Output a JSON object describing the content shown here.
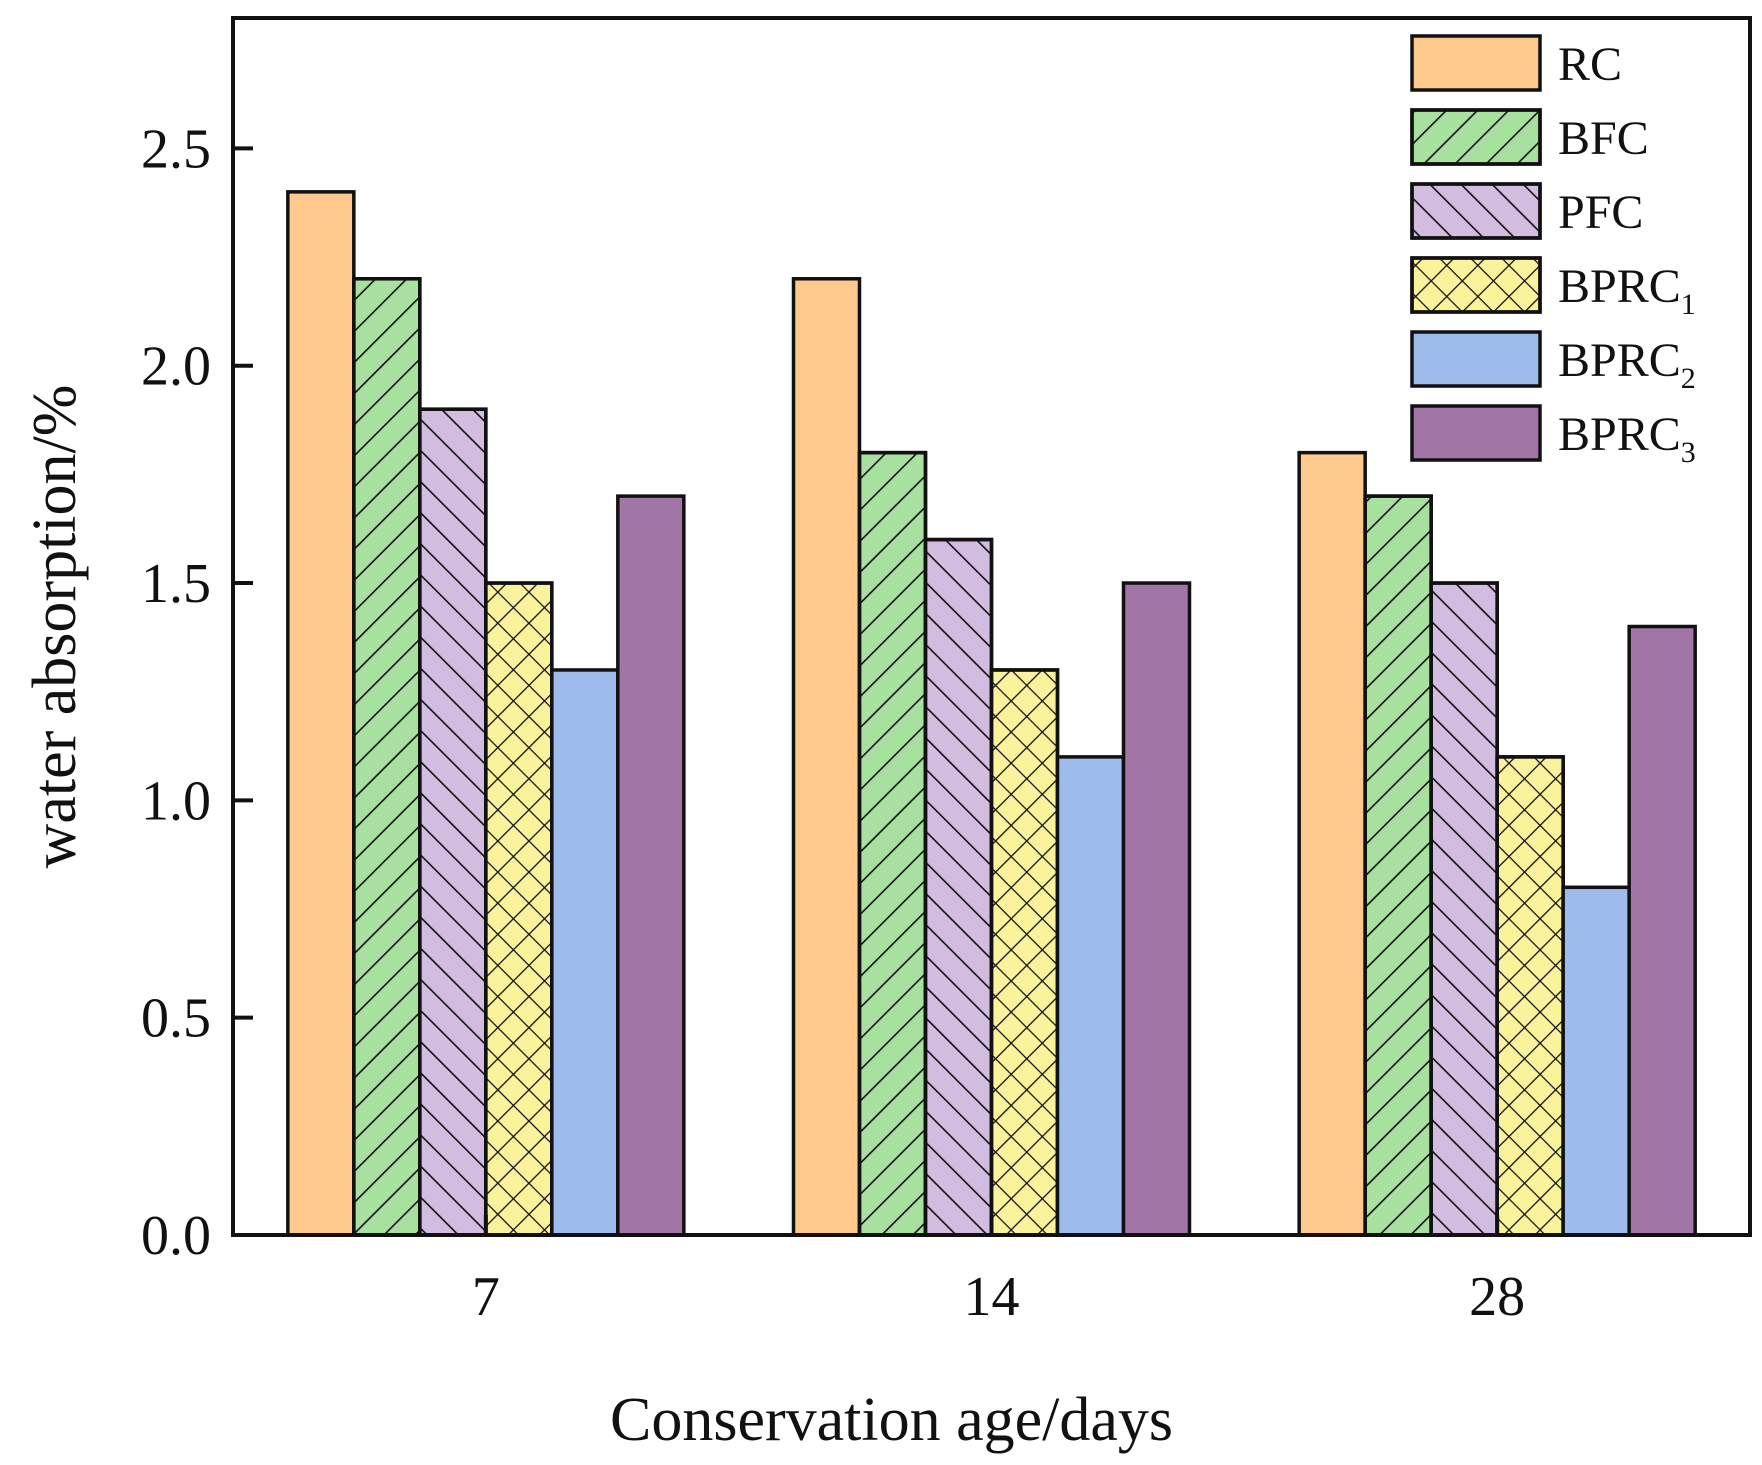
{
  "chart_data": {
    "type": "bar",
    "title": "",
    "xlabel": "Conservation age/days",
    "ylabel": "water absorption/%",
    "ylim": [
      0,
      2.8
    ],
    "yticks": [
      "0.0",
      "0.5",
      "1.0",
      "1.5",
      "2.0",
      "2.5"
    ],
    "categories": [
      "7",
      "14",
      "28"
    ],
    "legend_position": "top-right",
    "series": [
      {
        "name": "RC",
        "base": "RC",
        "sub": "",
        "color": "#FFC98E",
        "pattern": "none",
        "values": [
          2.4,
          2.2,
          1.8
        ]
      },
      {
        "name": "BFC",
        "base": "BFC",
        "sub": "",
        "color": "#A8E0A0",
        "pattern": "diag-right",
        "values": [
          2.2,
          1.8,
          1.7
        ]
      },
      {
        "name": "PFC",
        "base": "PFC",
        "sub": "",
        "color": "#D2BCE0",
        "pattern": "diag-left",
        "values": [
          1.9,
          1.6,
          1.5
        ]
      },
      {
        "name": "BPRC1",
        "base": "BPRC",
        "sub": "1",
        "color": "#FBF29C",
        "pattern": "crosshatch",
        "values": [
          1.5,
          1.3,
          1.1
        ]
      },
      {
        "name": "BPRC2",
        "base": "BPRC",
        "sub": "2",
        "color": "#9DBBEC",
        "pattern": "none",
        "values": [
          1.3,
          1.1,
          0.8
        ]
      },
      {
        "name": "BPRC3",
        "base": "BPRC",
        "sub": "3",
        "color": "#A176A6",
        "pattern": "none",
        "values": [
          1.7,
          1.5,
          1.4
        ]
      }
    ]
  }
}
